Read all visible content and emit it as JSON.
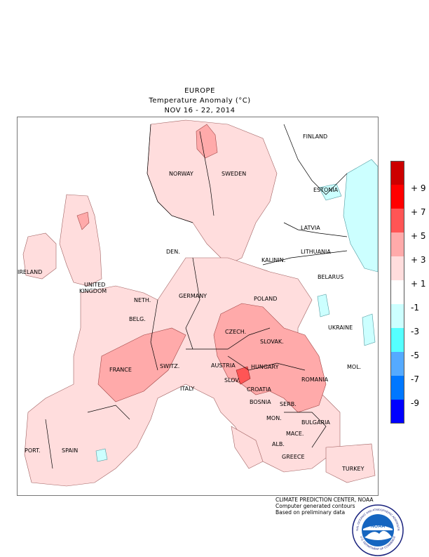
{
  "header": {
    "region": "EUROPE",
    "subtitle": "Temperature Anomaly (°C)",
    "dates": "NOV 16 - 22, 2014"
  },
  "countries": [
    "FINLAND",
    "NORWAY",
    "SWEDEN",
    "ESTONIA",
    "LATVIA",
    "LITHUANIA",
    "KALININ.",
    "DEN.",
    "IRELAND",
    "UNITED",
    "KINGDOM",
    "BELARUS",
    "NETH.",
    "GERMANY",
    "POLAND",
    "BELG.",
    "UKRAINE",
    "CZECH.",
    "SLOVAK.",
    "MOL.",
    "FRANCE",
    "SWITZ.",
    "AUSTRIA",
    "HUNGARY",
    "ROMANIA",
    "SLOV.",
    "CROATIA",
    "ITALY",
    "BOSNIA",
    "SERB.",
    "MON.",
    "BULGARIA",
    "MACE.",
    "PORT.",
    "SPAIN",
    "ALB.",
    "GREECE",
    "TURKEY"
  ],
  "legend": {
    "colors": [
      "#cc0000",
      "#ff0000",
      "#ff5555",
      "#ffaaaa",
      "#ffdddd",
      "#ffffff",
      "#ccffff",
      "#55ffff",
      "#55aaff",
      "#0077ff",
      "#0000ff"
    ],
    "labels": [
      "9",
      "7",
      "5",
      "3",
      "1",
      "-1",
      "-3",
      "-5",
      "-7",
      "-9"
    ]
  },
  "credits": {
    "line1": "CLIMATE PREDICTION CENTER, NOAA",
    "line2": "Computer generated contours",
    "line3": "Based on preliminary data"
  },
  "logo": {
    "text": "NOAA",
    "ring_top": "NATIONAL OCEANIC AND ATMOSPHERIC ADMINISTRATION",
    "ring_bottom": "U.S. DEPARTMENT OF COMMERCE"
  }
}
